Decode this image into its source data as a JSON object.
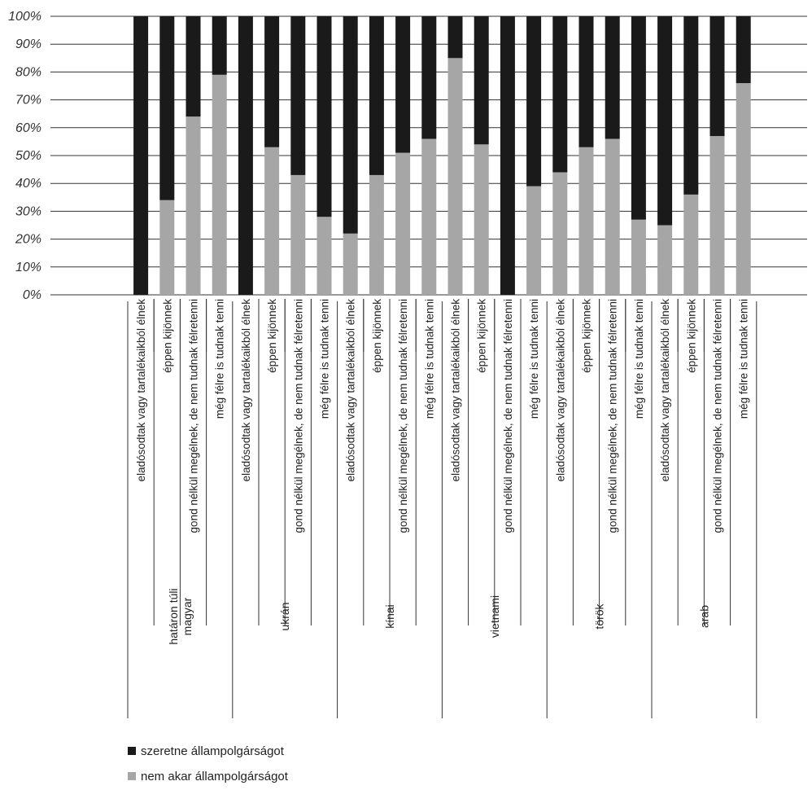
{
  "chart_data": {
    "type": "bar",
    "stacked": true,
    "ylim": [
      0,
      100
    ],
    "yticks": [
      "0%",
      "10%",
      "20%",
      "30%",
      "40%",
      "50%",
      "60%",
      "70%",
      "80%",
      "90%",
      "100%"
    ],
    "grid": true,
    "legend_position": "bottom-left",
    "categories": [
      "eladósodtak vagy tartalékaikból élnek",
      "éppen kijönnek",
      "gond nélkül megélnek, de nem tudnak félretenni",
      "még félre is tudnak tenni",
      "eladósodtak vagy tartalékaikból élnek",
      "éppen kijönnek",
      "gond nélkül megélnek, de nem tudnak félretenni",
      "még félre is tudnak tenni",
      "eladósodtak vagy tartalékaikból élnek",
      "éppen kijönnek",
      "gond nélkül megélnek, de nem tudnak félretenni",
      "még félre is tudnak tenni",
      "eladósodtak vagy tartalékaikból élnek",
      "éppen kijönnek",
      "gond nélkül megélnek, de nem tudnak félretenni",
      "még félre is tudnak tenni",
      "eladósodtak vagy tartalékaikból élnek",
      "éppen kijönnek",
      "gond nélkül megélnek, de nem tudnak félretenni",
      "még félre is tudnak tenni",
      "eladósodtak vagy tartalékaikból élnek",
      "éppen kijönnek",
      "gond nélkül megélnek, de nem tudnak félretenni",
      "még félre is tudnak tenni"
    ],
    "groups": [
      {
        "label": [
          "határon túli",
          "magyar"
        ],
        "start": 0,
        "count": 4
      },
      {
        "label": [
          "ukrán"
        ],
        "start": 4,
        "count": 4
      },
      {
        "label": [
          "kínai"
        ],
        "start": 8,
        "count": 4
      },
      {
        "label": [
          "vietnami"
        ],
        "start": 12,
        "count": 4
      },
      {
        "label": [
          "török"
        ],
        "start": 16,
        "count": 4
      },
      {
        "label": [
          "arab"
        ],
        "start": 20,
        "count": 4
      }
    ],
    "series": [
      {
        "name": "nem akar állampolgárságot",
        "color": "#a6a6a6",
        "values": [
          0,
          34,
          64,
          79,
          0,
          53,
          43,
          28,
          22,
          43,
          51,
          56,
          85,
          54,
          0,
          39,
          44,
          53,
          56,
          27,
          25,
          36,
          57,
          76
        ]
      },
      {
        "name": "szeretne állampolgárságot",
        "color": "#1a1a1a",
        "values": [
          100,
          66,
          36,
          21,
          100,
          47,
          57,
          72,
          78,
          57,
          49,
          44,
          15,
          46,
          100,
          61,
          56,
          47,
          44,
          73,
          75,
          64,
          43,
          24
        ]
      }
    ],
    "legend": [
      {
        "label": "szeretne állampolgárságot",
        "color": "#1a1a1a"
      },
      {
        "label": "nem akar állampolgárságot",
        "color": "#a6a6a6"
      }
    ]
  }
}
